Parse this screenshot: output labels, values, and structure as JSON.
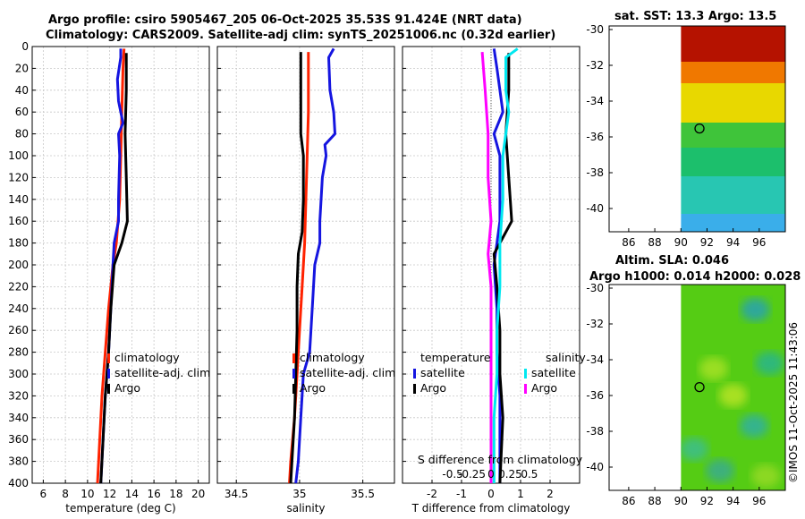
{
  "header": {
    "title_line1": "Argo profile: csiro 5905467_205 06-Oct-2025 35.53S 91.424E (NRT data)",
    "title_line2": "Climatology: CARS2009. Satellite-adj clim: synTS_20251006.nc (0.32d earlier)"
  },
  "timestamp": "©IMOS 11-Oct-2025 11:43:06",
  "colors": {
    "climatology": "#ff2200",
    "satellite": "#1515e0",
    "argo": "#000000",
    "sal_satellite": "#00e8f0",
    "sal_argo": "#ff00ff"
  },
  "chart_data": [
    {
      "id": "temperature",
      "type": "line",
      "xlabel": "temperature (deg C)",
      "ylabel": "",
      "xlim": [
        5,
        21
      ],
      "ylim": [
        400,
        0
      ],
      "xticks": [
        6,
        8,
        10,
        12,
        14,
        16,
        18,
        20
      ],
      "yticks": [
        0,
        20,
        40,
        60,
        80,
        100,
        120,
        140,
        160,
        180,
        200,
        220,
        240,
        260,
        280,
        300,
        320,
        340,
        360,
        380,
        400
      ],
      "grid": true,
      "legend": {
        "placement": "lower-right",
        "entries": [
          "climatology",
          "satellite-adj. clim",
          "Argo"
        ]
      },
      "series": [
        {
          "name": "climatology",
          "color": "#ff2200",
          "points": [
            [
              13.3,
              2
            ],
            [
              13.2,
              20
            ],
            [
              13.1,
              60
            ],
            [
              13.0,
              100
            ],
            [
              12.9,
              140
            ],
            [
              12.6,
              180
            ],
            [
              12.3,
              200
            ],
            [
              11.9,
              240
            ],
            [
              11.6,
              280
            ],
            [
              11.3,
              320
            ],
            [
              11.1,
              360
            ],
            [
              10.9,
              400
            ]
          ]
        },
        {
          "name": "satellite-adj. clim",
          "color": "#1515e0",
          "points": [
            [
              13.0,
              2
            ],
            [
              13.0,
              10
            ],
            [
              12.7,
              30
            ],
            [
              12.8,
              50
            ],
            [
              13.2,
              70
            ],
            [
              12.8,
              80
            ],
            [
              12.9,
              100
            ],
            [
              12.8,
              140
            ],
            [
              12.8,
              160
            ],
            [
              12.4,
              180
            ],
            [
              12.3,
              200
            ],
            [
              12.1,
              240
            ],
            [
              11.9,
              280
            ],
            [
              11.6,
              320
            ],
            [
              11.4,
              360
            ],
            [
              11.2,
              400
            ]
          ]
        },
        {
          "name": "Argo",
          "color": "#000000",
          "points": [
            [
              13.5,
              6
            ],
            [
              13.5,
              40
            ],
            [
              13.4,
              80
            ],
            [
              13.5,
              120
            ],
            [
              13.6,
              160
            ],
            [
              13.1,
              180
            ],
            [
              12.4,
              200
            ],
            [
              12.1,
              240
            ],
            [
              11.9,
              280
            ],
            [
              11.6,
              320
            ],
            [
              11.4,
              360
            ],
            [
              11.2,
              400
            ]
          ]
        }
      ]
    },
    {
      "id": "salinity",
      "type": "line",
      "xlabel": "salinity",
      "ylabel": "",
      "xlim": [
        34.35,
        35.75
      ],
      "ylim": [
        400,
        0
      ],
      "xticks": [
        34.5,
        35,
        35.5
      ],
      "yticks": [
        0,
        20,
        40,
        60,
        80,
        100,
        120,
        140,
        160,
        180,
        200,
        220,
        240,
        260,
        280,
        300,
        320,
        340,
        360,
        380,
        400
      ],
      "grid": true,
      "legend": {
        "placement": "lower-right",
        "entries": [
          "climatology",
          "satellite-adj. clim",
          "Argo"
        ]
      },
      "series": [
        {
          "name": "climatology",
          "color": "#ff2200",
          "points": [
            [
              35.07,
              5
            ],
            [
              35.07,
              20
            ],
            [
              35.07,
              60
            ],
            [
              35.06,
              100
            ],
            [
              35.05,
              140
            ],
            [
              35.04,
              180
            ],
            [
              35.02,
              220
            ],
            [
              35.0,
              260
            ],
            [
              34.98,
              300
            ],
            [
              34.96,
              340
            ],
            [
              34.93,
              380
            ],
            [
              34.92,
              400
            ]
          ]
        },
        {
          "name": "satellite-adj. clim",
          "color": "#1515e0",
          "points": [
            [
              35.27,
              2
            ],
            [
              35.23,
              10
            ],
            [
              35.24,
              40
            ],
            [
              35.27,
              60
            ],
            [
              35.28,
              80
            ],
            [
              35.2,
              90
            ],
            [
              35.21,
              100
            ],
            [
              35.18,
              120
            ],
            [
              35.17,
              140
            ],
            [
              35.16,
              160
            ],
            [
              35.16,
              180
            ],
            [
              35.12,
              200
            ],
            [
              35.1,
              240
            ],
            [
              35.08,
              280
            ],
            [
              35.03,
              300
            ],
            [
              35.01,
              340
            ],
            [
              34.99,
              380
            ],
            [
              34.97,
              400
            ]
          ]
        },
        {
          "name": "Argo",
          "color": "#000000",
          "points": [
            [
              35.01,
              5
            ],
            [
              35.01,
              40
            ],
            [
              35.01,
              80
            ],
            [
              35.03,
              100
            ],
            [
              35.03,
              140
            ],
            [
              35.02,
              170
            ],
            [
              34.99,
              190
            ],
            [
              34.98,
              220
            ],
            [
              34.98,
              260
            ],
            [
              34.97,
              300
            ],
            [
              34.96,
              340
            ],
            [
              34.94,
              380
            ],
            [
              34.93,
              400
            ]
          ]
        }
      ]
    },
    {
      "id": "difference",
      "type": "line",
      "xlabel": "T difference from climatology",
      "xlabel_top": "S difference from climatology",
      "xlim": [
        -3,
        3
      ],
      "ylim": [
        400,
        0
      ],
      "xticks": [
        -2,
        -1,
        0,
        1,
        2
      ],
      "top_ticks": [
        {
          "label": "-0.5",
          "value": -1.3
        },
        {
          "label": "-0.25",
          "value": -0.65
        },
        {
          "label": "0",
          "value": 0
        },
        {
          "label": "0.25",
          "value": 0.65
        },
        {
          "label": "0.5",
          "value": 1.3
        }
      ],
      "yticks": [
        0,
        20,
        40,
        60,
        80,
        100,
        120,
        140,
        160,
        180,
        200,
        220,
        240,
        260,
        280,
        300,
        320,
        340,
        360,
        380,
        400
      ],
      "grid": true,
      "legend_left": {
        "title": "temperature",
        "entries": [
          "satellite",
          "Argo"
        ]
      },
      "legend_right": {
        "title": "salinity",
        "entries": [
          "satellite",
          "Argo"
        ]
      },
      "series": [
        {
          "name": "temperature satellite",
          "color": "#1515e0",
          "points": [
            [
              0.1,
              2
            ],
            [
              0.2,
              20
            ],
            [
              0.4,
              60
            ],
            [
              0.1,
              80
            ],
            [
              0.3,
              100
            ],
            [
              0.3,
              160
            ],
            [
              0.2,
              180
            ],
            [
              0.1,
              200
            ],
            [
              0.2,
              240
            ],
            [
              0.2,
              280
            ],
            [
              0.3,
              320
            ],
            [
              0.3,
              360
            ],
            [
              0.3,
              400
            ]
          ]
        },
        {
          "name": "temperature Argo",
          "color": "#000000",
          "points": [
            [
              0.6,
              6
            ],
            [
              0.6,
              40
            ],
            [
              0.5,
              80
            ],
            [
              0.6,
              120
            ],
            [
              0.7,
              160
            ],
            [
              0.4,
              175
            ],
            [
              0.1,
              190
            ],
            [
              0.2,
              220
            ],
            [
              0.3,
              260
            ],
            [
              0.3,
              300
            ],
            [
              0.4,
              340
            ],
            [
              0.3,
              400
            ]
          ]
        },
        {
          "name": "salinity satellite",
          "color": "#00e8f0",
          "points": [
            [
              0.9,
              2
            ],
            [
              0.5,
              10
            ],
            [
              0.5,
              40
            ],
            [
              0.6,
              60
            ],
            [
              0.5,
              80
            ],
            [
              0.4,
              100
            ],
            [
              0.4,
              140
            ],
            [
              0.3,
              180
            ],
            [
              0.3,
              220
            ],
            [
              0.2,
              260
            ],
            [
              0.2,
              300
            ],
            [
              0.1,
              340
            ],
            [
              0.1,
              400
            ]
          ]
        },
        {
          "name": "salinity Argo",
          "color": "#ff00ff",
          "points": [
            [
              -0.3,
              5
            ],
            [
              -0.2,
              40
            ],
            [
              -0.1,
              80
            ],
            [
              -0.1,
              120
            ],
            [
              0.0,
              160
            ],
            [
              -0.1,
              190
            ],
            [
              0.0,
              220
            ],
            [
              0.0,
              260
            ],
            [
              0.0,
              300
            ],
            [
              0.0,
              340
            ],
            [
              0.0,
              400
            ]
          ]
        }
      ]
    },
    {
      "id": "sst-map",
      "type": "heatmap",
      "title": "sat. SST: 13.3 Argo: 13.5",
      "xlim": [
        84.5,
        98
      ],
      "ylim": [
        -41.3,
        -29.8
      ],
      "xticks": [
        86,
        88,
        90,
        92,
        94,
        96
      ],
      "yticks": [
        -30,
        -32,
        -34,
        -36,
        -38,
        -40
      ],
      "data_lon_min": 90,
      "marker": {
        "lon": 91.424,
        "lat": -35.53
      },
      "bands": [
        {
          "lat_min": -31.8,
          "color": "#b51200"
        },
        {
          "lat_min": -33.0,
          "color": "#f07800"
        },
        {
          "lat_min": -35.2,
          "color": "#e8d800"
        },
        {
          "lat_min": -36.6,
          "color": "#3fc43a"
        },
        {
          "lat_min": -38.2,
          "color": "#1cbf6c"
        },
        {
          "lat_min": -40.3,
          "color": "#28c6b2"
        },
        {
          "lat_min": -42.0,
          "color": "#3aaeea"
        }
      ]
    },
    {
      "id": "sla-map",
      "type": "heatmap",
      "title": "Altim. SLA: 0.046",
      "subtitle": "Argo h1000: 0.014 h2000: 0.028",
      "xlim": [
        84.5,
        98
      ],
      "ylim": [
        -41.3,
        -29.8
      ],
      "xticks": [
        86,
        88,
        90,
        92,
        94,
        96
      ],
      "yticks": [
        -30,
        -32,
        -34,
        -36,
        -38,
        -40
      ],
      "data_lon_min": 90,
      "marker": {
        "lon": 91.424,
        "lat": -35.53
      },
      "base_color": "#55cc14",
      "spots": [
        {
          "lon": 95.7,
          "lat": -31.2,
          "color": "#2fa89a"
        },
        {
          "lon": 92.5,
          "lat": -34.5,
          "color": "#9ade22"
        },
        {
          "lon": 96.8,
          "lat": -34.2,
          "color": "#2db87a"
        },
        {
          "lon": 94.0,
          "lat": -36.0,
          "color": "#a8e020"
        },
        {
          "lon": 95.6,
          "lat": -37.7,
          "color": "#36b48c"
        },
        {
          "lon": 91.0,
          "lat": -39.0,
          "color": "#40c07a"
        },
        {
          "lon": 93.0,
          "lat": -40.2,
          "color": "#3cb07c"
        },
        {
          "lon": 96.5,
          "lat": -40.5,
          "color": "#8cd820"
        }
      ]
    }
  ]
}
